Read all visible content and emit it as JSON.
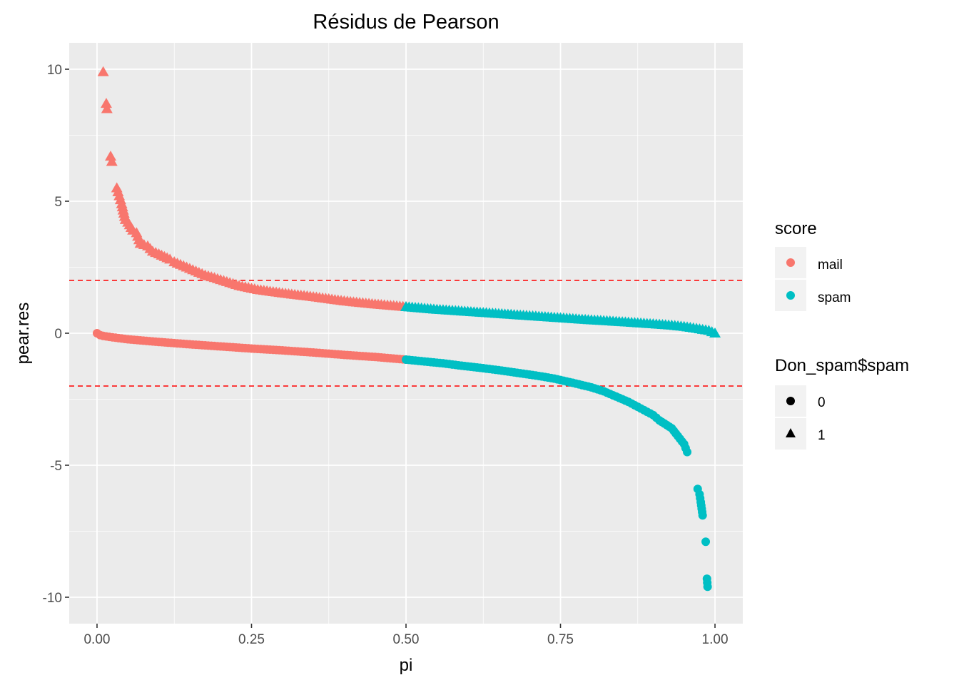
{
  "chart_data": {
    "type": "scatter",
    "title": "Résidus de Pearson",
    "xlabel": "pi",
    "ylabel": "pear.res",
    "xlim": [
      -0.045,
      1.045
    ],
    "ylim": [
      -11.0,
      11.0
    ],
    "x_ticks": [
      "0.00",
      "0.25",
      "0.50",
      "0.75",
      "1.00"
    ],
    "x_tick_values": [
      0,
      0.25,
      0.5,
      0.75,
      1.0
    ],
    "y_ticks": [
      "10",
      "5",
      "0",
      "-5",
      "-10"
    ],
    "y_tick_values": [
      10,
      5,
      0,
      -5,
      -10
    ],
    "grid": true,
    "panel_background": "#ebebeb",
    "reference_lines": [
      {
        "y": 2,
        "color": "#ff0000",
        "style": "dashed"
      },
      {
        "y": -2,
        "color": "#ff0000",
        "style": "dashed"
      }
    ],
    "legend_position": "right",
    "legend_color": {
      "title": "score",
      "items": [
        {
          "label": "mail",
          "color": "#f8766d"
        },
        {
          "label": "spam",
          "color": "#00bfc4"
        }
      ]
    },
    "legend_shape": {
      "title": "Don_spam$spam",
      "items": [
        {
          "label": "0",
          "shape": "circle"
        },
        {
          "label": "1",
          "shape": "triangle"
        }
      ]
    },
    "series": [
      {
        "score": "mail",
        "spam": "1",
        "shape": "triangle",
        "color": "#f8766d",
        "x": [
          0.01,
          0.015,
          0.016,
          0.022,
          0.024,
          0.032,
          0.036,
          0.04,
          0.046,
          0.05,
          0.058,
          0.064,
          0.07,
          0.082,
          0.09,
          0.1,
          0.118,
          0.125,
          0.14,
          0.15,
          0.16,
          0.175,
          0.19,
          0.21,
          0.23,
          0.26,
          0.3,
          0.35,
          0.4,
          0.45,
          0.5
        ],
        "y": [
          9.9,
          8.7,
          8.5,
          6.7,
          6.5,
          5.5,
          5.2,
          4.9,
          4.3,
          4.2,
          3.9,
          3.8,
          3.4,
          3.3,
          3.1,
          3.0,
          2.8,
          2.7,
          2.55,
          2.45,
          2.35,
          2.2,
          2.1,
          1.95,
          1.8,
          1.65,
          1.52,
          1.38,
          1.22,
          1.1,
          1.0
        ]
      },
      {
        "score": "spam",
        "spam": "1",
        "shape": "triangle",
        "color": "#00bfc4",
        "x": [
          0.5,
          0.55,
          0.6,
          0.65,
          0.7,
          0.75,
          0.8,
          0.85,
          0.9,
          0.93,
          0.95,
          0.97,
          0.98,
          0.99,
          1.0
        ],
        "y": [
          1.0,
          0.9,
          0.82,
          0.74,
          0.66,
          0.58,
          0.5,
          0.43,
          0.35,
          0.3,
          0.25,
          0.18,
          0.14,
          0.1,
          0.0
        ]
      },
      {
        "score": "mail",
        "spam": "0",
        "shape": "circle",
        "color": "#f8766d",
        "x": [
          0.0,
          0.005,
          0.01,
          0.02,
          0.05,
          0.1,
          0.15,
          0.2,
          0.25,
          0.3,
          0.35,
          0.4,
          0.45,
          0.5
        ],
        "y": [
          0.0,
          -0.07,
          -0.1,
          -0.14,
          -0.23,
          -0.33,
          -0.42,
          -0.5,
          -0.58,
          -0.65,
          -0.73,
          -0.82,
          -0.9,
          -1.0
        ]
      },
      {
        "score": "spam",
        "spam": "0",
        "shape": "circle",
        "color": "#00bfc4",
        "x": [
          0.5,
          0.53,
          0.56,
          0.59,
          0.62,
          0.65,
          0.68,
          0.71,
          0.74,
          0.77,
          0.8,
          0.82,
          0.84,
          0.86,
          0.88,
          0.9,
          0.91,
          0.93,
          0.94,
          0.95,
          0.955,
          0.972,
          0.975,
          0.977,
          0.98,
          0.985,
          0.987,
          0.988
        ],
        "y": [
          -1.0,
          -1.07,
          -1.14,
          -1.23,
          -1.31,
          -1.4,
          -1.5,
          -1.6,
          -1.72,
          -1.88,
          -2.05,
          -2.2,
          -2.4,
          -2.6,
          -2.85,
          -3.1,
          -3.3,
          -3.6,
          -3.9,
          -4.2,
          -4.5,
          -5.9,
          -6.1,
          -6.4,
          -6.9,
          -7.9,
          -9.3,
          -9.6
        ]
      }
    ]
  }
}
